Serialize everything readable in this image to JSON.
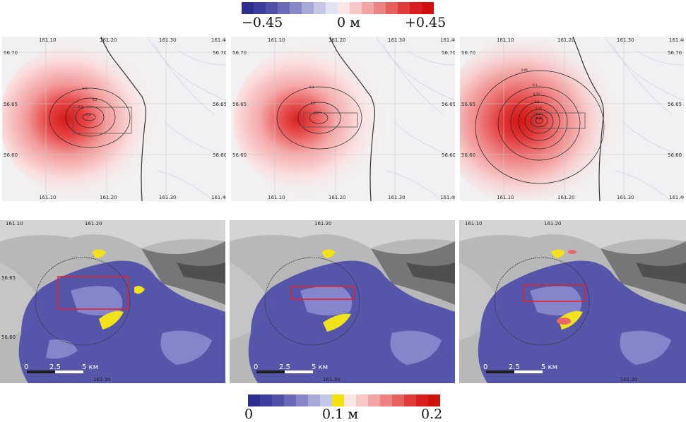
{
  "top_colorbar": {
    "min_label": "−0.45",
    "mid_label": "0 м",
    "max_label": "+0.45",
    "colors": [
      "#2e2e8e",
      "#3d3d9e",
      "#5050aa",
      "#6a6ab8",
      "#8787c8",
      "#a7a7d8",
      "#c6c6e6",
      "#e2e2f2",
      "#fbe6e6",
      "#f7c7c7",
      "#f2a5a5",
      "#ec8282",
      "#e65f5f",
      "#e03c3c",
      "#d81f1f",
      "#d00f0f"
    ]
  },
  "bottom_colorbar": {
    "min_label": "0",
    "mid_label": "0.1 м",
    "max_label": "0.2",
    "colors": [
      "#2e2e8e",
      "#3d3d9e",
      "#5050aa",
      "#6a6ab8",
      "#8787c8",
      "#a7a7d8",
      "#c6c6e6",
      "#f5e10a",
      "#fbe6e6",
      "#f7c7c7",
      "#f2a5a5",
      "#ec8282",
      "#e65f5f",
      "#e03c3c",
      "#d81f1f",
      "#d00f0f"
    ]
  },
  "axes": {
    "lon_ticks": [
      "161.10",
      "161.20",
      "161.30",
      "161.40"
    ],
    "lat_ticks": [
      "56.70",
      "56.65",
      "56.60"
    ]
  },
  "model_panels": [
    {
      "contours": [
        "0.1",
        "0.2",
        "0.3",
        "0.4"
      ]
    },
    {
      "contours": [
        "0.1",
        "0.2",
        "0.3"
      ]
    },
    {
      "contours": [
        "0.05",
        "0.1",
        "0.15",
        "0.2",
        "0.25",
        "0.3",
        "0.35"
      ]
    }
  ],
  "observation_panels": [
    {
      "lat_ticks": [
        "56.65",
        "56.60"
      ],
      "lon_ticks": [
        "161.10",
        "161.20",
        "161.30"
      ],
      "scale_labels": [
        "0",
        "2.5",
        "5 км"
      ]
    },
    {
      "lon_ticks": [
        "161.20",
        "161.30"
      ],
      "scale_labels": [
        "0",
        "2.5",
        "5 км"
      ]
    },
    {
      "lon_ticks": [
        "161.10",
        "161.20",
        "161.30"
      ],
      "scale_labels": [
        "0",
        "2.5",
        "5 км"
      ]
    }
  ]
}
